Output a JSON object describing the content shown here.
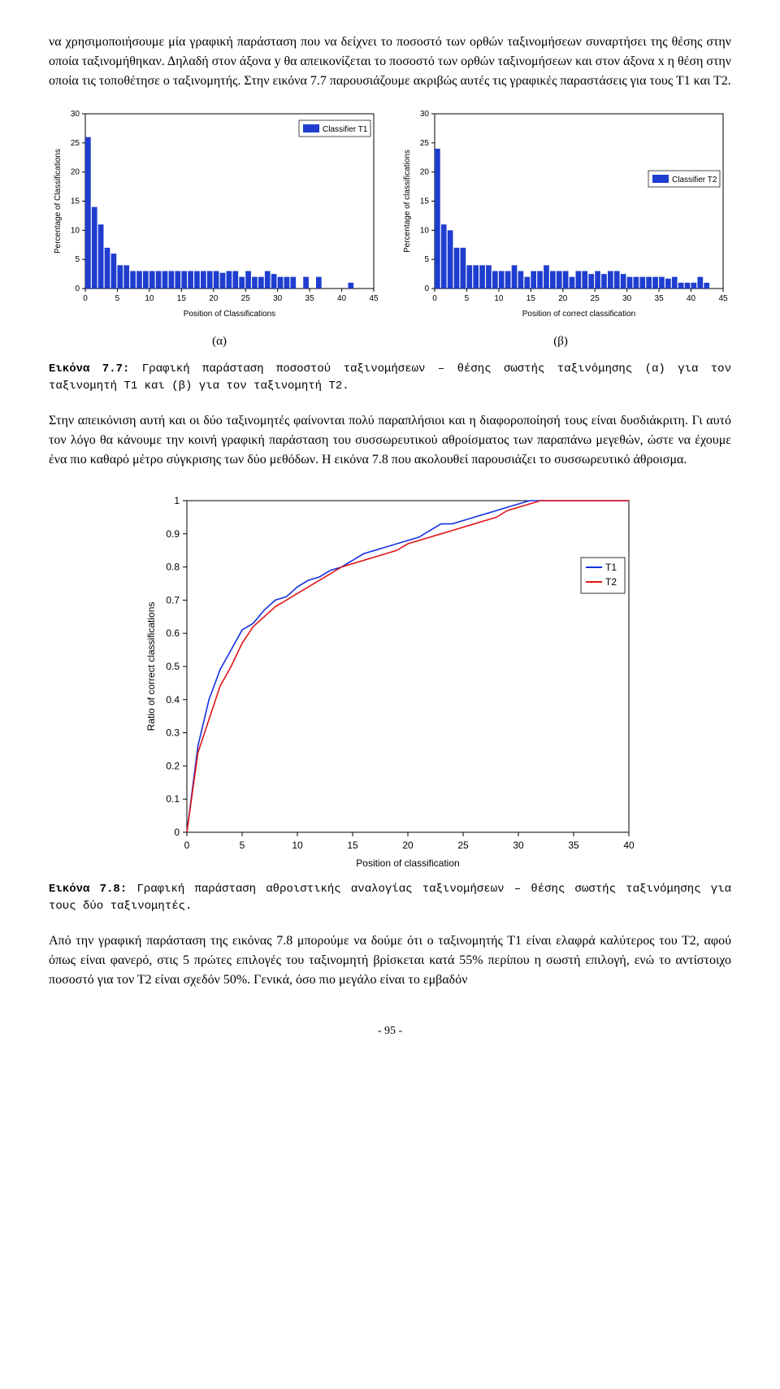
{
  "para1": "να χρησιμοποιήσουμε μία γραφική παράσταση που να δείχνει το ποσοστό των ορθών ταξινομήσεων συναρτήσει της θέσης στην οποία ταξινομήθηκαν. Δηλαδή στον άξονα y θα απεικονίζεται το ποσοστό των ορθών ταξινομήσεων και στον άξονα x η θέση στην οποία τις τοποθέτησε ο ταξινομητής. Στην εικόνα 7.7 παρουσιάζουμε ακριβώς αυτές τις γραφικές παραστάσεις για τους Τ1 και Τ2.",
  "barChartA": {
    "xlabel": "Position of Classifications",
    "ylabel": "Percentage of Classifications",
    "legend": "Classifier T1",
    "color": "#1f3dcf",
    "grid_color": "#cccccc",
    "xlim": [
      0,
      45
    ],
    "ylim": [
      0,
      30
    ],
    "xtick": [
      0,
      5,
      10,
      15,
      20,
      25,
      30,
      35,
      40,
      45
    ],
    "ytick": [
      0,
      5,
      10,
      15,
      20,
      25,
      30
    ],
    "values": [
      26,
      14,
      11,
      7,
      6,
      4,
      4,
      3,
      3,
      3,
      3,
      3,
      3,
      3,
      3,
      3,
      3,
      3,
      3,
      3,
      3,
      2.7,
      3,
      3,
      2,
      3,
      2,
      2,
      3,
      2.5,
      2,
      2,
      2,
      0,
      2,
      0,
      2,
      0,
      0,
      0,
      0,
      1,
      0,
      0,
      0
    ],
    "sub_label": "(α)"
  },
  "barChartB": {
    "xlabel": "Position of correct classification",
    "ylabel": "Percentage of classifications",
    "legend": "Classifier T2",
    "color": "#1f3dcf",
    "grid_color": "#cccccc",
    "xlim": [
      0,
      45
    ],
    "ylim": [
      0,
      30
    ],
    "xtick": [
      0,
      5,
      10,
      15,
      20,
      25,
      30,
      35,
      40,
      45
    ],
    "ytick": [
      0,
      5,
      10,
      15,
      20,
      25,
      30
    ],
    "values": [
      24,
      11,
      10,
      7,
      7,
      4,
      4,
      4,
      4,
      3,
      3,
      3,
      4,
      3,
      2,
      3,
      3,
      4,
      3,
      3,
      3,
      2,
      3,
      3,
      2.5,
      3,
      2.5,
      3,
      3,
      2.5,
      2,
      2,
      2,
      2,
      2,
      2,
      1.7,
      2,
      1,
      1,
      1,
      2,
      1,
      0,
      0
    ],
    "sub_label": "(β)"
  },
  "caption1_lead": "Εικόνα 7.7:",
  "caption1_body": " Γραφική παράσταση ποσοστού ταξινομήσεων – θέσης σωστής ταξινόμησης (α) για τον ταξινομητή Τ1 και (β) για τον ταξινομητή Τ2.",
  "para2": "Στην απεικόνιση αυτή και οι δύο ταξινομητές φαίνονται πολύ παραπλήσιοι και η διαφοροποίησή τους είναι δυσδιάκριτη. Γι αυτό τον λόγο θα κάνουμε την κοινή γραφική παράσταση του συσσωρευτικού αθροίσματος των παραπάνω μεγεθών, ώστε να έχουμε ένα πιο καθαρό μέτρο σύγκρισης των δύο μεθόδων. Η εικόνα 7.8 που ακολουθεί παρουσιάζει το συσσωρευτικό άθροισμα.",
  "lineChart": {
    "xlabel": "Position of classification",
    "ylabel": "Ratio of correct classifications",
    "xlim": [
      0,
      40
    ],
    "ylim": [
      0,
      1
    ],
    "xtick": [
      0,
      5,
      10,
      15,
      20,
      25,
      30,
      35,
      40
    ],
    "ytick": [
      0,
      0.1,
      0.2,
      0.3,
      0.4,
      0.5,
      0.6,
      0.7,
      0.8,
      0.9,
      1
    ],
    "grid_color": "#cccccc",
    "series": [
      {
        "name": "T1",
        "color": "#1530e0",
        "x": [
          0,
          1,
          2,
          3,
          4,
          5,
          6,
          7,
          8,
          9,
          10,
          11,
          12,
          13,
          14,
          15,
          16,
          17,
          18,
          19,
          20,
          21,
          22,
          23,
          24,
          25,
          26,
          27,
          28,
          29,
          30,
          31,
          32,
          33,
          34,
          35,
          36,
          37,
          38,
          39,
          40
        ],
        "y": [
          0,
          0.26,
          0.4,
          0.49,
          0.55,
          0.61,
          0.63,
          0.67,
          0.7,
          0.71,
          0.74,
          0.76,
          0.77,
          0.79,
          0.8,
          0.82,
          0.84,
          0.85,
          0.86,
          0.87,
          0.88,
          0.89,
          0.91,
          0.93,
          0.93,
          0.94,
          0.95,
          0.96,
          0.97,
          0.98,
          0.99,
          1.0,
          1.0,
          1.0,
          1.0,
          1.0,
          1.0,
          1.0,
          1.0,
          1.0,
          1.0
        ]
      },
      {
        "name": "T2",
        "color": "#e01515",
        "x": [
          0,
          1,
          2,
          3,
          4,
          5,
          6,
          7,
          8,
          9,
          10,
          11,
          12,
          13,
          14,
          15,
          16,
          17,
          18,
          19,
          20,
          21,
          22,
          23,
          24,
          25,
          26,
          27,
          28,
          29,
          30,
          31,
          32,
          33,
          34,
          35,
          36,
          37,
          38,
          39,
          40
        ],
        "y": [
          0,
          0.24,
          0.34,
          0.44,
          0.5,
          0.57,
          0.62,
          0.65,
          0.68,
          0.7,
          0.72,
          0.74,
          0.76,
          0.78,
          0.8,
          0.81,
          0.82,
          0.83,
          0.84,
          0.85,
          0.87,
          0.88,
          0.89,
          0.9,
          0.91,
          0.92,
          0.93,
          0.94,
          0.95,
          0.97,
          0.98,
          0.99,
          1.0,
          1.0,
          1.0,
          1.0,
          1.0,
          1.0,
          1.0,
          1.0,
          1.0
        ]
      }
    ]
  },
  "caption2_lead": "Εικόνα 7.8:",
  "caption2_body": " Γραφική παράσταση αθροιστικής αναλογίας ταξινομήσεων – θέσης σωστής ταξινόμησης για τους δύο ταξινομητές.",
  "para3": "Από την γραφική παράσταση της εικόνας 7.8 μπορούμε να δούμε ότι ο ταξινομητής Τ1 είναι ελαφρά καλύτερος του Τ2, αφού όπως είναι φανερό, στις 5 πρώτες επιλογές του ταξινομητή βρίσκεται κατά 55% περίπου η σωστή επιλογή, ενώ το αντίστοιχο ποσοστό για τον Τ2 είναι σχεδόν 50%. Γενικά, όσο πιο μεγάλο είναι το εμβαδόν",
  "page_num": "- 95 -"
}
